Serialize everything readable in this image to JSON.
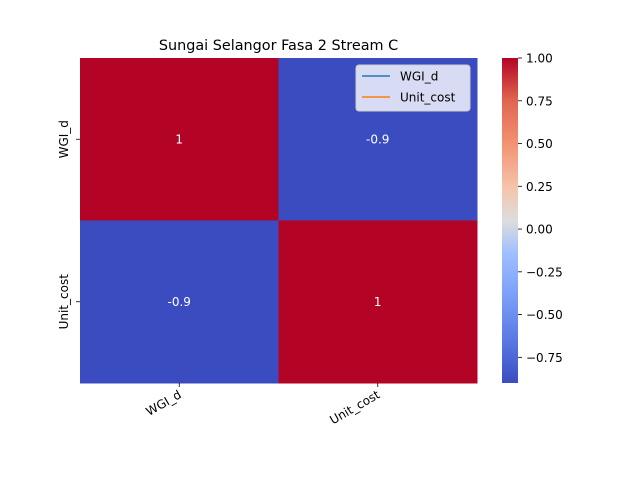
{
  "chart_data": {
    "type": "heatmap",
    "title": "Sungai Selangor Fasa 2 Stream C",
    "xlabel": "",
    "ylabel": "",
    "rows": [
      "WGI_d",
      "Unit_cost"
    ],
    "columns": [
      "WGI_d",
      "Unit_cost"
    ],
    "values": [
      [
        1,
        -0.9
      ],
      [
        -0.9,
        1
      ]
    ],
    "cell_labels": [
      [
        "1",
        "-0.9"
      ],
      [
        "-0.9",
        "1"
      ]
    ],
    "colormap": "coolwarm",
    "colorbar": {
      "vmin": -0.9,
      "vmax": 1.0,
      "ticks": [
        1.0,
        0.75,
        0.5,
        0.25,
        0.0,
        -0.25,
        -0.5,
        -0.75
      ],
      "tick_labels": [
        "1.00",
        "0.75",
        "0.50",
        "0.25",
        "0.00",
        "−0.25",
        "−0.50",
        "−0.75"
      ]
    },
    "legend": {
      "placement": "top-right",
      "entries": [
        {
          "label": "WGI_d",
          "color": "#1f77b4"
        },
        {
          "label": "Unit_cost",
          "color": "#ff7f0e"
        }
      ]
    },
    "colors": {
      "high": "#b40426",
      "low": "#3b4cc0",
      "mid": "#dddddd"
    }
  }
}
